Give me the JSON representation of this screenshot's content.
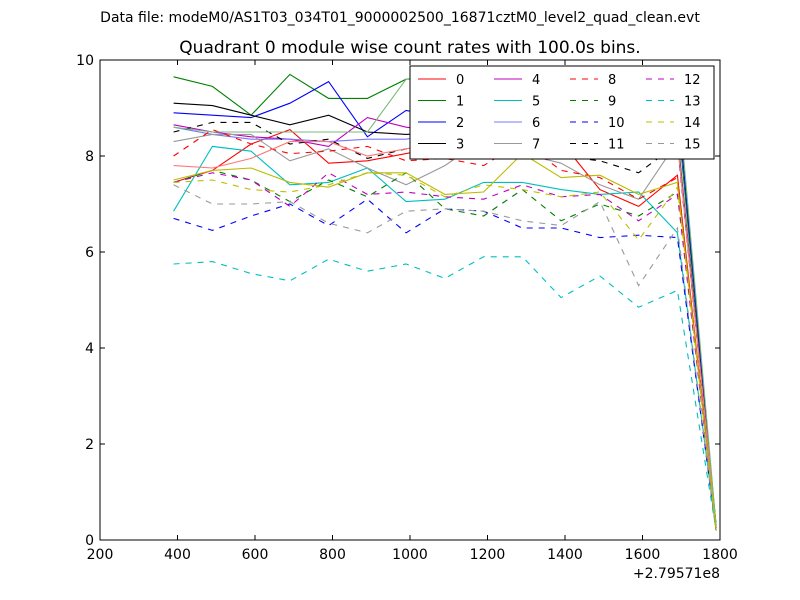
{
  "chart_data": {
    "type": "line",
    "suptitle": "Data file: modeM0/AS1T03_034T01_9000002500_16871cztM0_level2_quad_clean.evt",
    "title": "Quadrant 0 module wise count rates with 100.0s bins.",
    "xlabel": "",
    "ylabel": "",
    "x_offset_label": "+2.79571e8",
    "xlim": [
      200,
      1800
    ],
    "ylim": [
      0,
      10
    ],
    "xticks": [
      200,
      400,
      600,
      800,
      1000,
      1200,
      1400,
      1600,
      1800
    ],
    "yticks": [
      0,
      2,
      4,
      6,
      8,
      10
    ],
    "grid": false,
    "legend_position": "top-right",
    "x": [
      390,
      490,
      590,
      690,
      790,
      890,
      990,
      1090,
      1190,
      1290,
      1390,
      1490,
      1590,
      1690,
      1790
    ],
    "series": [
      {
        "name": "0",
        "color": "#ff0000",
        "dash": "solid",
        "values": [
          7.45,
          7.7,
          8.25,
          8.55,
          7.85,
          7.9,
          8.05,
          8.2,
          8.3,
          8.3,
          8.3,
          7.3,
          6.95,
          7.6,
          0.2
        ]
      },
      {
        "name": "1",
        "color": "#008000",
        "dash": "solid",
        "values": [
          9.65,
          9.45,
          8.85,
          9.7,
          9.2,
          9.2,
          9.6,
          9.65,
          9.15,
          8.9,
          9.1,
          9.45,
          8.5,
          8.9,
          0.3
        ]
      },
      {
        "name": "2",
        "color": "#0000ff",
        "dash": "solid",
        "values": [
          8.9,
          8.85,
          8.8,
          9.1,
          9.55,
          8.4,
          8.95,
          8.8,
          8.85,
          8.65,
          8.65,
          8.6,
          8.45,
          9.2,
          0.25
        ]
      },
      {
        "name": "3",
        "color": "#000000",
        "dash": "solid",
        "values": [
          9.1,
          9.05,
          8.85,
          8.65,
          8.85,
          8.5,
          8.45,
          8.5,
          9.15,
          8.75,
          8.65,
          8.4,
          8.25,
          8.45,
          0.3
        ]
      },
      {
        "name": "4",
        "color": "#bf00bf",
        "dash": "solid",
        "values": [
          8.65,
          8.5,
          8.4,
          8.35,
          8.2,
          8.8,
          8.6,
          8.5,
          8.75,
          8.7,
          8.7,
          8.5,
          8.2,
          8.4,
          0.25
        ]
      },
      {
        "name": "5",
        "color": "#00bfbf",
        "dash": "solid",
        "values": [
          6.85,
          8.2,
          8.1,
          7.4,
          7.45,
          7.75,
          7.05,
          7.1,
          7.45,
          7.45,
          7.3,
          7.2,
          7.25,
          6.4,
          0.2
        ]
      },
      {
        "name": "6",
        "color": "#7777ff",
        "dash": "solid",
        "values": [
          8.6,
          8.45,
          8.35,
          8.35,
          8.3,
          8.35,
          8.35,
          8.5,
          8.9,
          8.9,
          8.95,
          9.0,
          8.2,
          8.35,
          0.25
        ]
      },
      {
        "name": "7",
        "color": "#999999",
        "dash": "solid",
        "values": [
          8.3,
          8.45,
          8.45,
          7.9,
          8.15,
          7.75,
          7.4,
          7.8,
          8.35,
          8.05,
          7.85,
          7.4,
          7.1,
          8.3,
          0.2
        ]
      },
      {
        "name": "8",
        "color": "#ff0000",
        "dash": "dashed",
        "values": [
          8.0,
          8.55,
          8.25,
          8.05,
          8.1,
          8.2,
          7.9,
          7.95,
          7.8,
          8.3,
          7.7,
          7.55,
          7.1,
          7.55,
          0.2
        ]
      },
      {
        "name": "9",
        "color": "#008000",
        "dash": "dashed",
        "values": [
          7.45,
          7.7,
          7.5,
          7.05,
          7.5,
          7.15,
          7.65,
          6.9,
          6.75,
          7.3,
          6.65,
          7.0,
          6.75,
          7.25,
          0.2
        ]
      },
      {
        "name": "10",
        "color": "#0000ff",
        "dash": "dashed",
        "values": [
          6.7,
          6.45,
          6.75,
          7.0,
          6.55,
          7.1,
          6.4,
          6.9,
          6.85,
          6.5,
          6.5,
          6.3,
          6.35,
          6.3,
          0.2
        ]
      },
      {
        "name": "11",
        "color": "#000000",
        "dash": "dashed",
        "values": [
          8.5,
          8.7,
          8.7,
          8.25,
          8.35,
          7.95,
          8.15,
          8.05,
          8.25,
          8.05,
          8.0,
          7.9,
          7.65,
          8.25,
          0.25
        ]
      },
      {
        "name": "12",
        "color": "#bf00bf",
        "dash": "dashed",
        "values": [
          7.45,
          7.65,
          7.5,
          6.95,
          7.65,
          7.2,
          7.25,
          7.15,
          7.1,
          7.4,
          7.15,
          7.2,
          6.65,
          7.2,
          0.2
        ]
      },
      {
        "name": "13",
        "color": "#00bfbf",
        "dash": "dashed",
        "values": [
          5.75,
          5.8,
          5.55,
          5.4,
          5.85,
          5.6,
          5.75,
          5.45,
          5.9,
          5.9,
          5.05,
          5.5,
          4.85,
          5.2,
          0.2
        ]
      },
      {
        "name": "14",
        "color": "#bfbf00",
        "dash": "dashed",
        "values": [
          7.45,
          7.5,
          7.3,
          7.25,
          7.4,
          7.65,
          7.6,
          7.15,
          7.4,
          7.3,
          7.15,
          7.25,
          6.25,
          7.35,
          0.2
        ]
      },
      {
        "name": "15",
        "color": "#999999",
        "dash": "dashed",
        "values": [
          7.4,
          7.0,
          7.0,
          7.05,
          6.6,
          6.4,
          6.85,
          6.9,
          6.85,
          6.65,
          6.55,
          7.05,
          5.3,
          6.5,
          0.2
        ]
      },
      {
        "name": "",
        "color": "#ff7777",
        "dash": "solid",
        "values": [
          7.8,
          7.75,
          7.95,
          8.3,
          8.3,
          8.0,
          8.15,
          8.3,
          8.3,
          8.3,
          8.3,
          8.3,
          8.2,
          8.3,
          0.25
        ]
      },
      {
        "name": "",
        "color": "#77bb77",
        "dash": "solid",
        "values": [
          8.6,
          8.5,
          8.5,
          8.5,
          8.5,
          8.5,
          9.6,
          9.75,
          9.2,
          8.85,
          9.0,
          9.4,
          8.2,
          9.45,
          0.3
        ]
      },
      {
        "name": "",
        "color": "#bbbb00",
        "dash": "solid",
        "values": [
          7.5,
          7.7,
          7.75,
          7.45,
          7.35,
          7.65,
          7.65,
          7.2,
          7.25,
          8.05,
          7.55,
          7.6,
          7.2,
          7.45,
          0.2
        ]
      }
    ]
  }
}
